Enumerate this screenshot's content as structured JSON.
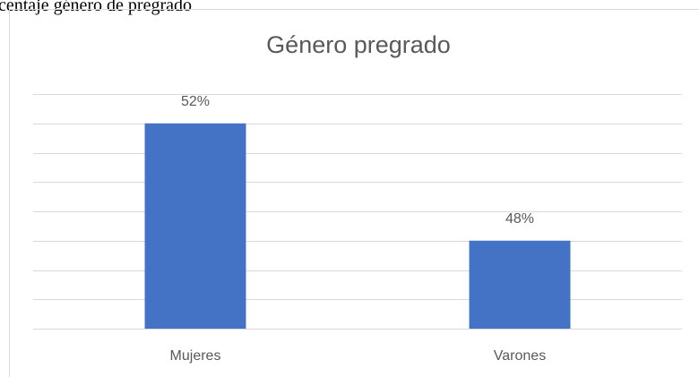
{
  "caption": "centaje género de pregrado",
  "chart_data": {
    "type": "bar",
    "title": "Género pregrado",
    "categories": [
      "Mujeres",
      "Varones"
    ],
    "values": [
      52,
      48
    ],
    "value_labels": [
      "52%",
      "48%"
    ],
    "color": "#4472c4",
    "ylim": [
      45,
      53
    ],
    "yticks": [
      45,
      46,
      47,
      48,
      49,
      50,
      51,
      52,
      53
    ],
    "grid": true
  }
}
